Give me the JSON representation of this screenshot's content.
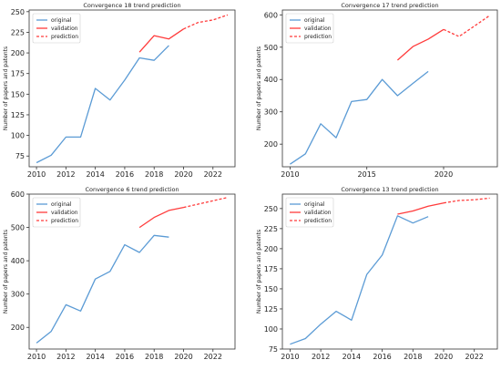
{
  "colors": {
    "original": "#5b9bd5",
    "validation": "#ff3b3b",
    "prediction": "#ff3b3b",
    "axis": "#333333"
  },
  "chart_data": [
    {
      "type": "line",
      "title": "Convergence 18 trend prediction",
      "xlabel": "",
      "ylabel": "Number of papers and patents",
      "xlim": [
        2009.5,
        2023.5
      ],
      "ylim": [
        62,
        252
      ],
      "xticks": [
        "2010",
        "2012",
        "2014",
        "2016",
        "2018",
        "2020",
        "2022"
      ],
      "yticks": [
        "75",
        "100",
        "125",
        "150",
        "175",
        "200",
        "225",
        "250"
      ],
      "legend": "top-left",
      "grid": false,
      "series": [
        {
          "name": "original",
          "style": "solid",
          "x": [
            2010,
            2011,
            2012,
            2013,
            2014,
            2015,
            2016,
            2017,
            2018,
            2019
          ],
          "y": [
            67,
            76,
            98,
            98,
            157,
            143,
            167,
            194,
            191,
            209
          ]
        },
        {
          "name": "validation",
          "style": "solid",
          "x": [
            2017,
            2018,
            2019,
            2020
          ],
          "y": [
            201,
            221,
            217,
            229
          ]
        },
        {
          "name": "prediction",
          "style": "dashed",
          "x": [
            2020,
            2021,
            2022,
            2023
          ],
          "y": [
            229,
            237,
            240,
            246
          ]
        }
      ]
    },
    {
      "type": "line",
      "title": "Convergence 17 trend prediction",
      "xlabel": "",
      "ylabel": "Number of papers and patents",
      "xlim": [
        2009.5,
        2023.5
      ],
      "ylim": [
        130,
        615
      ],
      "xticks": [
        "2010",
        "2015",
        "2020"
      ],
      "yticks": [
        "200",
        "300",
        "400",
        "500",
        "600"
      ],
      "legend": "top-left",
      "grid": false,
      "series": [
        {
          "name": "original",
          "style": "solid",
          "x": [
            2010,
            2011,
            2012,
            2013,
            2014,
            2015,
            2016,
            2017,
            2018,
            2019
          ],
          "y": [
            138,
            170,
            263,
            220,
            332,
            338,
            400,
            350,
            388,
            425
          ]
        },
        {
          "name": "validation",
          "style": "solid",
          "x": [
            2017,
            2018,
            2019,
            2020
          ],
          "y": [
            460,
            502,
            525,
            555
          ]
        },
        {
          "name": "prediction",
          "style": "dashed",
          "x": [
            2020,
            2021,
            2022,
            2023
          ],
          "y": [
            555,
            533,
            565,
            598
          ]
        }
      ]
    },
    {
      "type": "line",
      "title": "Convergence 6 trend prediction",
      "xlabel": "",
      "ylabel": "Number of papers and patents",
      "xlim": [
        2009.5,
        2023.5
      ],
      "ylim": [
        135,
        600
      ],
      "xticks": [
        "2010",
        "2012",
        "2014",
        "2016",
        "2018",
        "2020",
        "2022"
      ],
      "yticks": [
        "200",
        "300",
        "400",
        "500",
        "600"
      ],
      "legend": "top-left",
      "grid": false,
      "series": [
        {
          "name": "original",
          "style": "solid",
          "x": [
            2010,
            2011,
            2012,
            2013,
            2014,
            2015,
            2016,
            2017,
            2018,
            2019
          ],
          "y": [
            153,
            188,
            268,
            249,
            345,
            368,
            448,
            425,
            476,
            471
          ]
        },
        {
          "name": "validation",
          "style": "solid",
          "x": [
            2017,
            2018,
            2019,
            2020
          ],
          "y": [
            500,
            530,
            551,
            560
          ]
        },
        {
          "name": "prediction",
          "style": "dashed",
          "x": [
            2020,
            2021,
            2022,
            2023
          ],
          "y": [
            560,
            570,
            580,
            590
          ]
        }
      ]
    },
    {
      "type": "line",
      "title": "Convergence 13 trend prediction",
      "xlabel": "",
      "ylabel": "Number of papers and patents",
      "xlim": [
        2009.5,
        2023.5
      ],
      "ylim": [
        75,
        268
      ],
      "xticks": [
        "2010",
        "2012",
        "2014",
        "2016",
        "2018",
        "2020",
        "2022"
      ],
      "yticks": [
        "75",
        "100",
        "125",
        "150",
        "175",
        "200",
        "225",
        "250"
      ],
      "legend": "top-left",
      "grid": false,
      "series": [
        {
          "name": "original",
          "style": "solid",
          "x": [
            2010,
            2011,
            2012,
            2013,
            2014,
            2015,
            2016,
            2017,
            2018,
            2019
          ],
          "y": [
            81,
            88,
            106,
            122,
            111,
            168,
            192,
            241,
            232,
            240
          ]
        },
        {
          "name": "validation",
          "style": "solid",
          "x": [
            2017,
            2018,
            2019,
            2020
          ],
          "y": [
            243,
            247,
            253,
            257
          ]
        },
        {
          "name": "prediction",
          "style": "dashed",
          "x": [
            2020,
            2021,
            2022,
            2023
          ],
          "y": [
            257,
            260,
            261,
            263
          ]
        }
      ]
    }
  ]
}
